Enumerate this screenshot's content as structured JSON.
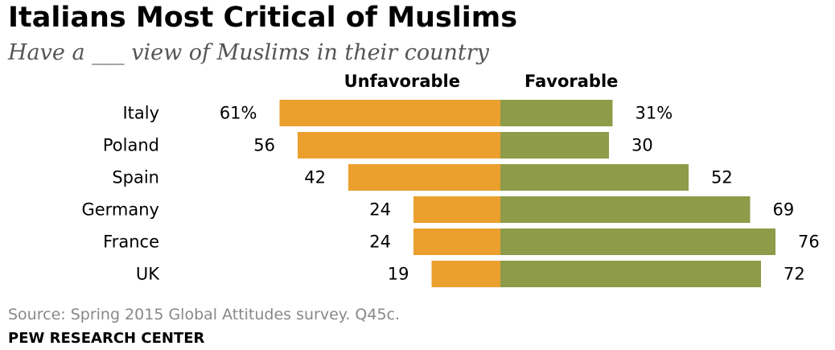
{
  "header": {
    "title": "Italians Most Critical of Muslims",
    "subtitle": "Have a ___ view of Muslims in their country"
  },
  "footer": {
    "source": "Source: Spring 2015 Global Attitudes survey. Q45c.",
    "brand": "PEW RESEARCH CENTER"
  },
  "colors": {
    "unfavorable": "#EBA02E",
    "favorable": "#8E9B48"
  },
  "chart_data": {
    "type": "bar",
    "orientation": "horizontal-diverging",
    "title": "Italians Most Critical of Muslims",
    "subtitle": "Have a ___ view of Muslims in their country",
    "categories": [
      "Italy",
      "Poland",
      "Spain",
      "Germany",
      "France",
      "UK"
    ],
    "series": [
      {
        "name": "Unfavorable",
        "values": [
          61,
          56,
          42,
          24,
          24,
          19
        ],
        "labels": [
          "61%",
          "56",
          "42",
          "24",
          "24",
          "19"
        ]
      },
      {
        "name": "Favorable",
        "values": [
          31,
          30,
          52,
          69,
          76,
          72
        ],
        "labels": [
          "31%",
          "30",
          "52",
          "69",
          "76",
          "72"
        ]
      }
    ],
    "grid": false,
    "legend_placement": "top"
  }
}
